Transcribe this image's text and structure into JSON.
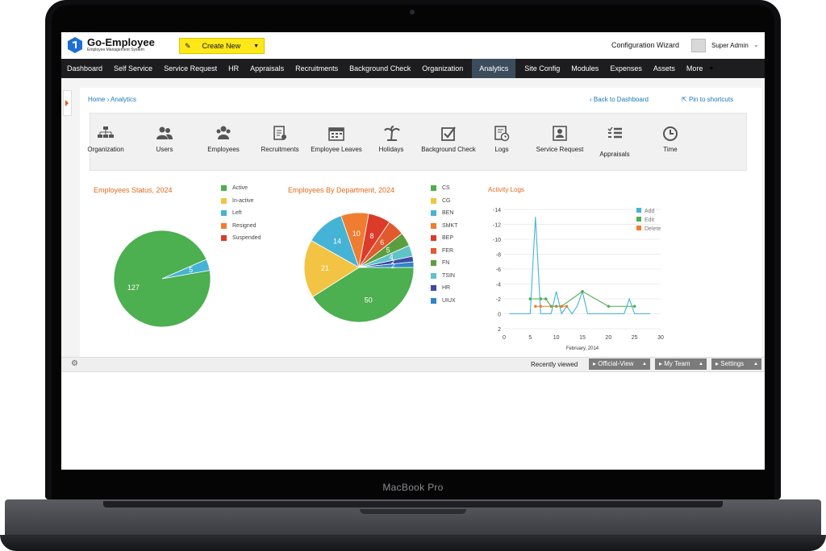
{
  "app": {
    "title": "Go-Employee",
    "subtitle": "Employee Management System",
    "create_label": "Create New",
    "config_label": "Configuration Wizard",
    "user_label": "Super Admin",
    "device_label": "MacBook Pro"
  },
  "nav": [
    "Dashboard",
    "Self Service",
    "Service Request",
    "HR",
    "Appraisals",
    "Recruitments",
    "Background Check",
    "Organization",
    "Analytics",
    "Site Config",
    "Modules",
    "Expenses",
    "Assets",
    "More"
  ],
  "nav_active": "Analytics",
  "breadcrumb": {
    "home": "Home",
    "sep": "›",
    "current": "Analytics"
  },
  "actions": {
    "back": "Back to Dashboard",
    "pin": "Pin to shortcuts"
  },
  "modules": [
    {
      "label": "Organization",
      "icon": "org-chart-icon"
    },
    {
      "label": "Users",
      "icon": "users-icon"
    },
    {
      "label": "Employees",
      "icon": "employees-icon"
    },
    {
      "label": "Recruitments",
      "icon": "document-icon"
    },
    {
      "label": "Employee Leaves",
      "icon": "calendar-icon"
    },
    {
      "label": "Holidays",
      "icon": "palm-tree-icon"
    },
    {
      "label": "Background Check",
      "icon": "check-box-icon"
    },
    {
      "label": "Logs",
      "icon": "log-clock-icon"
    },
    {
      "label": "Service Request",
      "icon": "service-request-icon"
    },
    {
      "label": "Appraisals",
      "icon": "list-icon"
    },
    {
      "label": "Time",
      "icon": "clock-icon"
    }
  ],
  "chart_data": [
    {
      "type": "pie",
      "title": "Employees Status, 2024",
      "categories": [
        "Active",
        "In-active",
        "Left",
        "Resigned",
        "Suspended"
      ],
      "values": [
        127,
        0,
        5,
        0,
        0
      ],
      "colors": [
        "#4caf50",
        "#f3c443",
        "#45b3d6",
        "#ef7d31",
        "#dc3b2a"
      ]
    },
    {
      "type": "pie",
      "title": "Employees By Department, 2024",
      "categories": [
        "CS",
        "CG",
        "BEN",
        "SMKT",
        "BEP",
        "FER",
        "FN",
        "TSIN",
        "HR",
        "UIUX"
      ],
      "values": [
        50,
        21,
        14,
        10,
        8,
        6,
        5,
        4,
        2,
        2
      ],
      "colors": [
        "#4caf50",
        "#f3c443",
        "#45b3d6",
        "#ef7d31",
        "#dc3b2a",
        "#e05a2e",
        "#5b9e3f",
        "#5fc3c7",
        "#3d4aa8",
        "#2f86c8"
      ]
    },
    {
      "type": "line",
      "title": "Activity Logs",
      "xlabel": "February, 2014",
      "xlim": [
        0,
        30
      ],
      "ylim": [
        -14,
        2
      ],
      "y_reversed": true,
      "xticks": [
        0,
        5,
        10,
        15,
        20,
        25,
        30
      ],
      "yticks": [
        -14,
        -12,
        -10,
        -8,
        -6,
        -4,
        -2,
        0,
        2
      ],
      "series": [
        {
          "name": "Add",
          "color": "#45b3d6",
          "x": [
            1,
            4,
            5,
            6,
            7,
            8,
            9,
            10,
            11,
            12,
            13,
            14,
            15,
            16,
            17,
            18,
            19,
            20,
            21,
            22,
            23,
            24,
            25,
            26,
            27,
            28
          ],
          "y": [
            0,
            0,
            0,
            -13,
            0,
            0,
            0,
            -3,
            0,
            -1,
            0,
            -1,
            -3,
            0,
            0,
            0,
            0,
            0,
            0,
            0,
            0,
            -2,
            0,
            0,
            0,
            0
          ]
        },
        {
          "name": "Edit",
          "color": "#4caf50",
          "x": [
            5,
            7,
            8,
            9,
            10,
            11,
            15,
            20,
            25
          ],
          "y": [
            -2,
            -2,
            -2,
            -1,
            -1,
            -1,
            -3,
            -1,
            -1
          ]
        },
        {
          "name": "Delete",
          "color": "#ef7d31",
          "x": [
            6,
            7,
            11,
            12
          ],
          "y": [
            -1,
            -1,
            -1,
            -1
          ]
        }
      ]
    }
  ],
  "footer": {
    "recent_label": "Recently viewed",
    "buttons": [
      "Official-View",
      "My Team",
      "Settings"
    ]
  }
}
